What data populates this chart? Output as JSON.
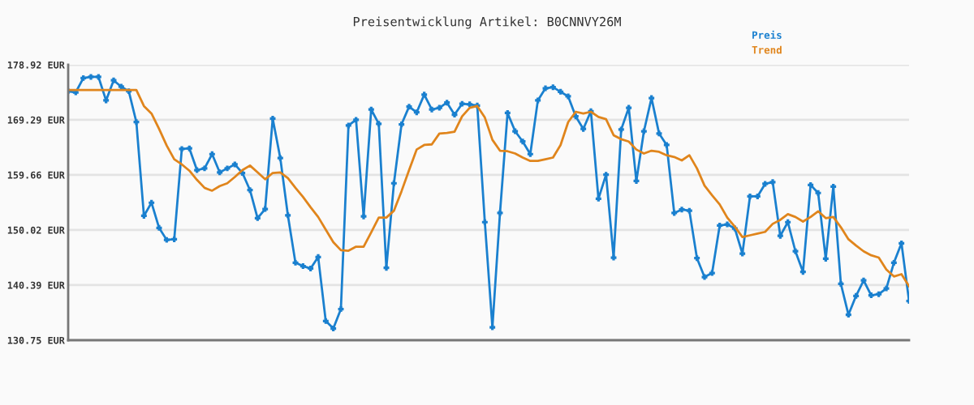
{
  "chart_data": {
    "type": "line",
    "title": "Preisentwicklung Artikel: B0CNNVY26M",
    "categories": [
      null,
      null,
      null,
      null,
      null,
      null,
      null,
      null,
      null,
      null,
      null,
      null,
      null,
      null,
      null,
      null,
      null,
      null,
      null,
      null,
      null,
      null,
      null,
      null,
      null,
      null,
      null,
      null,
      null,
      null,
      null,
      null,
      null,
      null,
      null,
      null,
      null,
      null,
      null,
      null,
      null,
      null,
      null,
      null,
      null,
      null,
      null,
      null,
      null,
      null,
      null,
      null,
      null,
      null,
      null,
      null,
      null,
      null,
      null,
      null,
      null,
      null,
      null,
      null,
      null,
      null,
      null,
      null,
      null,
      null,
      null,
      null,
      null,
      null,
      null,
      null,
      null,
      null,
      null,
      null,
      null,
      null,
      null,
      null,
      null,
      null,
      null,
      null,
      null,
      null,
      null,
      null,
      null,
      null,
      null,
      null,
      null,
      null,
      null,
      null,
      null,
      null,
      null,
      null,
      null,
      null,
      null,
      null,
      null,
      null,
      null,
      null
    ],
    "series": [
      {
        "name": "Preis",
        "color": "#1a80cf",
        "marker": "cross",
        "values": [
          174.3,
          174.1,
          176.6,
          176.8,
          176.8,
          172.7,
          176.2,
          175.1,
          174.3,
          168.9,
          152.5,
          154.8,
          150.4,
          148.3,
          148.4,
          164.2,
          164.3,
          160.5,
          160.8,
          163.3,
          160.1,
          160.8,
          161.5,
          160.0,
          157.0,
          152.1,
          153.7,
          169.5,
          162.6,
          152.6,
          144.3,
          143.7,
          143.3,
          145.3,
          134.1,
          132.8,
          136.2,
          168.3,
          169.3,
          152.4,
          171.1,
          168.6,
          143.4,
          158.2,
          168.5,
          171.6,
          170.6,
          173.7,
          171.1,
          171.4,
          172.3,
          170.2,
          172.1,
          172.0,
          171.8,
          151.4,
          133.0,
          153.0,
          170.5,
          167.3,
          165.5,
          163.3,
          172.7,
          174.8,
          175.0,
          174.2,
          173.4,
          169.9,
          167.7,
          170.8,
          155.5,
          159.7,
          145.2,
          167.6,
          171.4,
          158.6,
          167.3,
          173.1,
          166.9,
          164.9,
          153.0,
          153.6,
          153.4,
          145.1,
          141.8,
          142.5,
          150.8,
          151.0,
          150.3,
          145.9,
          155.9,
          155.9,
          158.1,
          158.4,
          149.0,
          151.4,
          146.3,
          142.7,
          157.9,
          156.5,
          145.0,
          157.6,
          140.6,
          135.2,
          138.5,
          141.2,
          138.6,
          138.8,
          139.8,
          144.3,
          147.7,
          137.6
        ]
      },
      {
        "name": "Trend",
        "color": "#e0851c",
        "marker": "none",
        "values": [
          174.5,
          174.5,
          174.5,
          174.5,
          174.5,
          174.5,
          174.5,
          174.5,
          174.5,
          174.5,
          171.7,
          170.4,
          167.7,
          164.8,
          162.4,
          161.5,
          160.4,
          158.8,
          157.4,
          156.9,
          157.7,
          158.2,
          159.3,
          160.5,
          161.3,
          160.1,
          158.9,
          160.0,
          160.1,
          159.1,
          157.4,
          155.8,
          154.0,
          152.3,
          150.1,
          147.9,
          146.5,
          146.4,
          147.1,
          147.1,
          149.6,
          152.2,
          152.2,
          153.4,
          156.8,
          160.5,
          164.1,
          164.9,
          165.0,
          166.9,
          167.0,
          167.2,
          169.9,
          171.4,
          171.7,
          169.7,
          165.8,
          163.9,
          163.8,
          163.4,
          162.7,
          162.1,
          162.1,
          162.4,
          162.7,
          164.9,
          168.9,
          170.7,
          170.4,
          170.7,
          169.8,
          169.4,
          166.6,
          165.9,
          165.5,
          164.1,
          163.4,
          163.9,
          163.7,
          163.1,
          162.8,
          162.2,
          163.1,
          160.8,
          157.8,
          156.1,
          154.5,
          152.2,
          150.6,
          148.8,
          149.1,
          149.4,
          149.7,
          151.1,
          151.8,
          152.8,
          152.3,
          151.5,
          152.3,
          153.3,
          152.1,
          152.3,
          150.5,
          148.4,
          147.3,
          146.3,
          145.6,
          145.2,
          143.1,
          141.9,
          142.3,
          140.2
        ]
      }
    ],
    "ylim": [
      130.75,
      178.92
    ],
    "yticks": [
      {
        "value": 130.75,
        "label": "130.75 EUR"
      },
      {
        "value": 140.39,
        "label": "140.39 EUR"
      },
      {
        "value": 150.02,
        "label": "150.02 EUR"
      },
      {
        "value": 159.66,
        "label": "159.66 EUR"
      },
      {
        "value": 169.29,
        "label": "169.29 EUR"
      },
      {
        "value": 178.92,
        "label": "178.92 EUR"
      }
    ],
    "grid": "y",
    "legend": "top right",
    "tick_labels": "y",
    "line_style": "solid"
  }
}
